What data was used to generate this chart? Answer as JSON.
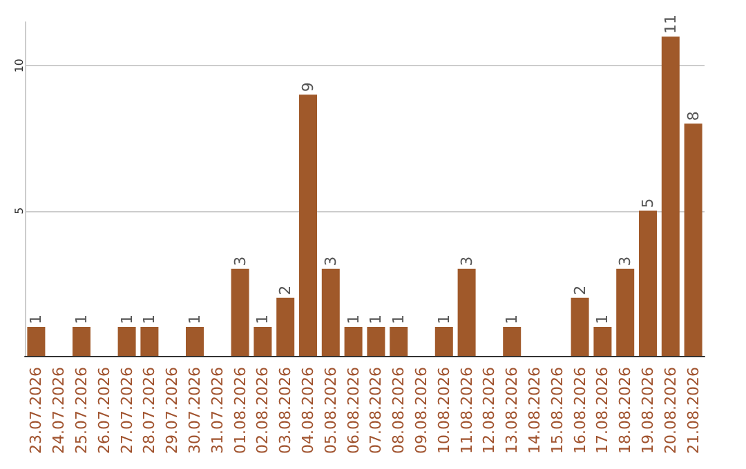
{
  "chart_data": {
    "type": "bar",
    "categories": [
      "23.07.2026",
      "24.07.2026",
      "25.07.2026",
      "26.07.2026",
      "27.07.2026",
      "28.07.2026",
      "29.07.2026",
      "30.07.2026",
      "31.07.2026",
      "01.08.2026",
      "02.08.2026",
      "03.08.2026",
      "04.08.2026",
      "05.08.2026",
      "06.08.2026",
      "07.08.2026",
      "08.08.2026",
      "09.08.2026",
      "10.08.2026",
      "11.08.2026",
      "12.08.2026",
      "13.08.2026",
      "14.08.2026",
      "15.08.2026",
      "16.08.2026",
      "17.08.2026",
      "18.08.2026",
      "19.08.2026",
      "20.08.2026",
      "21.08.2026"
    ],
    "values": [
      1,
      null,
      1,
      null,
      1,
      1,
      null,
      1,
      null,
      3,
      1,
      2,
      9,
      3,
      1,
      1,
      1,
      null,
      1,
      3,
      null,
      1,
      null,
      null,
      2,
      1,
      3,
      5,
      11,
      8
    ],
    "color": "#a0592a",
    "ylim": [
      0,
      11.5
    ],
    "yticks": [
      5,
      10
    ],
    "grid": "y",
    "data_labels": true
  }
}
